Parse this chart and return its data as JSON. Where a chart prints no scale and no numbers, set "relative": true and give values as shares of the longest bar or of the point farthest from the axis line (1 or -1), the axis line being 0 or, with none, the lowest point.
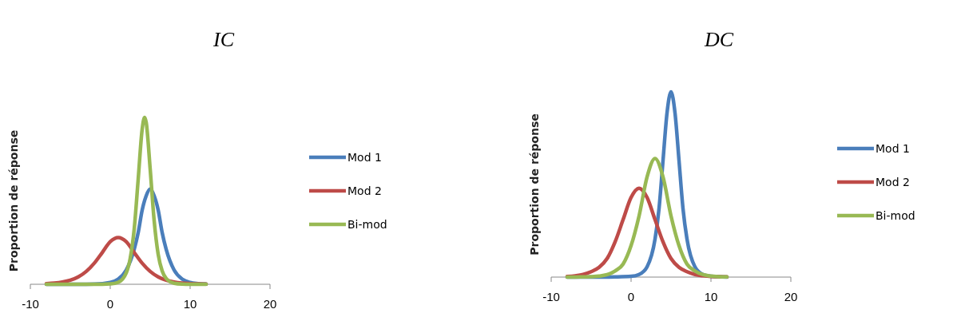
{
  "chart_data": [
    {
      "type": "line",
      "title": "IC",
      "ylabel": "Proportion de réponse",
      "relative": true,
      "xlim": [
        -10,
        20
      ],
      "xticks": [
        -10,
        0,
        10,
        20
      ],
      "tick_labels": "x",
      "legend": "right",
      "grid": false,
      "marker": "none",
      "line_style": "solid",
      "series": [
        {
          "name": "Mod 1",
          "color": "#4a7ebb",
          "x": [
            -8,
            -4,
            -2,
            0,
            1,
            2,
            3,
            3.5,
            4,
            4.5,
            5,
            5.5,
            6,
            6.5,
            7,
            8,
            9,
            10,
            11,
            12
          ],
          "values": [
            0,
            0,
            0.001,
            0.011,
            0.031,
            0.085,
            0.21,
            0.31,
            0.445,
            0.53,
            0.57,
            0.53,
            0.445,
            0.31,
            0.21,
            0.085,
            0.031,
            0.011,
            0.004,
            0.001
          ]
        },
        {
          "name": "Mod 2",
          "color": "#be4b48",
          "x": [
            -8,
            -7,
            -6,
            -5,
            -4,
            -3,
            -2,
            -1,
            0,
            1,
            2,
            3,
            4,
            5,
            6,
            7,
            8,
            9,
            10,
            11,
            12
          ],
          "values": [
            0.004,
            0.007,
            0.013,
            0.024,
            0.044,
            0.077,
            0.126,
            0.19,
            0.255,
            0.28,
            0.255,
            0.19,
            0.126,
            0.077,
            0.044,
            0.024,
            0.013,
            0.007,
            0.004,
            0.002,
            0.001
          ]
        },
        {
          "name": "Bi-mod",
          "color": "#98b954",
          "x": [
            -8,
            -4,
            -1,
            0,
            1,
            2,
            2.5,
            3,
            3.5,
            4,
            4.3,
            4.5,
            5,
            5.5,
            6,
            6.5,
            7,
            8,
            9,
            10,
            12
          ],
          "values": [
            0,
            0,
            0,
            0.002,
            0.012,
            0.068,
            0.155,
            0.33,
            0.63,
            0.93,
            1,
            0.97,
            0.69,
            0.38,
            0.18,
            0.08,
            0.035,
            0.006,
            0.001,
            0,
            0
          ]
        }
      ]
    },
    {
      "type": "line",
      "title": "DC",
      "ylabel": "Proportion de réponse",
      "relative": true,
      "xlim": [
        -10,
        20
      ],
      "xticks": [
        -10,
        0,
        10,
        20
      ],
      "tick_labels": "x",
      "legend": "right",
      "grid": false,
      "marker": "none",
      "line_style": "solid",
      "series": [
        {
          "name": "Mod 1",
          "color": "#4a7ebb",
          "x": [
            -8,
            -6,
            -4,
            -2,
            0,
            1,
            2,
            3,
            3.5,
            4,
            4.5,
            5,
            5.5,
            6,
            6.5,
            7,
            8,
            9,
            10,
            12
          ],
          "values": [
            0,
            0,
            0,
            0.001,
            0.004,
            0.014,
            0.055,
            0.205,
            0.37,
            0.63,
            0.886,
            1,
            0.886,
            0.63,
            0.37,
            0.205,
            0.055,
            0.014,
            0.004,
            0
          ]
        },
        {
          "name": "Mod 2",
          "color": "#be4b48",
          "x": [
            -8,
            -7,
            -6,
            -5,
            -4,
            -3,
            -2,
            -1,
            0,
            1,
            2,
            3,
            4,
            5,
            6,
            7,
            8,
            9,
            10,
            11,
            12
          ],
          "values": [
            0.003,
            0.007,
            0.014,
            0.029,
            0.053,
            0.1,
            0.19,
            0.31,
            0.43,
            0.48,
            0.43,
            0.31,
            0.19,
            0.1,
            0.053,
            0.029,
            0.014,
            0.007,
            0.003,
            0.002,
            0.001
          ]
        },
        {
          "name": "Bi-mod",
          "color": "#98b954",
          "x": [
            -8,
            -7,
            -6,
            -5,
            -4,
            -3,
            -2,
            -1,
            0,
            1,
            2,
            3,
            4,
            5,
            6,
            7,
            8,
            9,
            10,
            11,
            12
          ],
          "values": [
            0,
            0,
            0.001,
            0.002,
            0.005,
            0.013,
            0.033,
            0.07,
            0.17,
            0.33,
            0.54,
            0.64,
            0.54,
            0.33,
            0.17,
            0.07,
            0.033,
            0.013,
            0.005,
            0.002,
            0.001
          ]
        }
      ]
    }
  ]
}
